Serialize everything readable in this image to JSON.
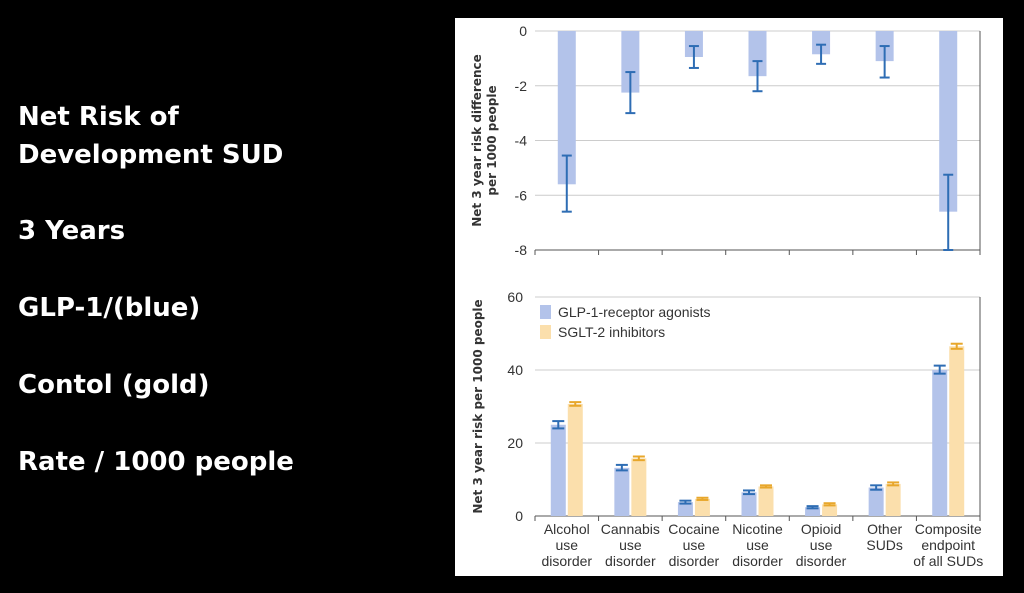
{
  "slide": {
    "lines": [
      "Net Risk of",
      "Development SUD",
      "3 Years",
      "GLP-1/(blue)",
      "Contol (gold)",
      "Rate / 1000 people"
    ]
  },
  "colors": {
    "background": "#000000",
    "text": "#ffffff",
    "glp1_bar": "#b3c3ea",
    "glp1_err": "#2e6db4",
    "sglt2_bar": "#fbdfac",
    "sglt2_err": "#e8a72b",
    "grid": "#cccccc"
  },
  "chart_data": [
    {
      "type": "bar",
      "ylabel": "Net 3 year risk difference per 1000 people",
      "ylim": [
        -8,
        0
      ],
      "yticks": [
        "0",
        "-2",
        "-4",
        "-6",
        "-8"
      ],
      "grid": true,
      "categories": [
        "Alcohol use disorder",
        "Cannabis use disorder",
        "Cocaine use disorder",
        "Nicotine use disorder",
        "Opioid use disorder",
        "Other SUDs",
        "Composite endpoint of all SUDs"
      ],
      "series": [
        {
          "values": [
            -5.6,
            -2.25,
            -0.95,
            -1.65,
            -0.85,
            -1.1,
            -6.6
          ],
          "err_low": [
            -6.6,
            -3.0,
            -1.35,
            -2.2,
            -1.2,
            -1.7,
            -8.0
          ],
          "err_high": [
            -4.55,
            -1.5,
            -0.55,
            -1.1,
            -0.5,
            -0.55,
            -5.25
          ]
        }
      ]
    },
    {
      "type": "bar",
      "ylabel": "Net 3 year risk per 1000 people",
      "ylim": [
        0,
        60
      ],
      "yticks": [
        "60",
        "40",
        "20",
        "0"
      ],
      "grid": true,
      "legend_position": "top-left",
      "categories": [
        "Alcohol use disorder",
        "Cannabis use disorder",
        "Cocaine use disorder",
        "Nicotine use disorder",
        "Opioid use disorder",
        "Other SUDs",
        "Composite endpoint of all SUDs"
      ],
      "category_labels": [
        [
          "Alcohol",
          "use",
          "disorder"
        ],
        [
          "Cannabis",
          "use",
          "disorder"
        ],
        [
          "Cocaine",
          "use",
          "disorder"
        ],
        [
          "Nicotine",
          "use",
          "disorder"
        ],
        [
          "Opioid",
          "use",
          "disorder"
        ],
        [
          "Other",
          "SUDs"
        ],
        [
          "Composite",
          "endpoint",
          "of all SUDs"
        ]
      ],
      "series": [
        {
          "name": "GLP-1-receptor agonists",
          "values": [
            25.0,
            13.2,
            3.8,
            6.5,
            2.4,
            7.8,
            40.0
          ],
          "err_low": [
            24.0,
            12.5,
            3.4,
            6.0,
            2.1,
            7.2,
            39.0
          ],
          "err_high": [
            26.0,
            14.0,
            4.2,
            7.0,
            2.7,
            8.4,
            41.2
          ]
        },
        {
          "name": "SGLT-2 inhibitors",
          "values": [
            30.7,
            15.8,
            4.7,
            8.1,
            3.2,
            8.8,
            46.5
          ],
          "err_low": [
            30.2,
            15.3,
            4.4,
            7.8,
            2.9,
            8.4,
            45.8
          ],
          "err_high": [
            31.2,
            16.3,
            5.0,
            8.4,
            3.5,
            9.2,
            47.2
          ]
        }
      ]
    }
  ]
}
